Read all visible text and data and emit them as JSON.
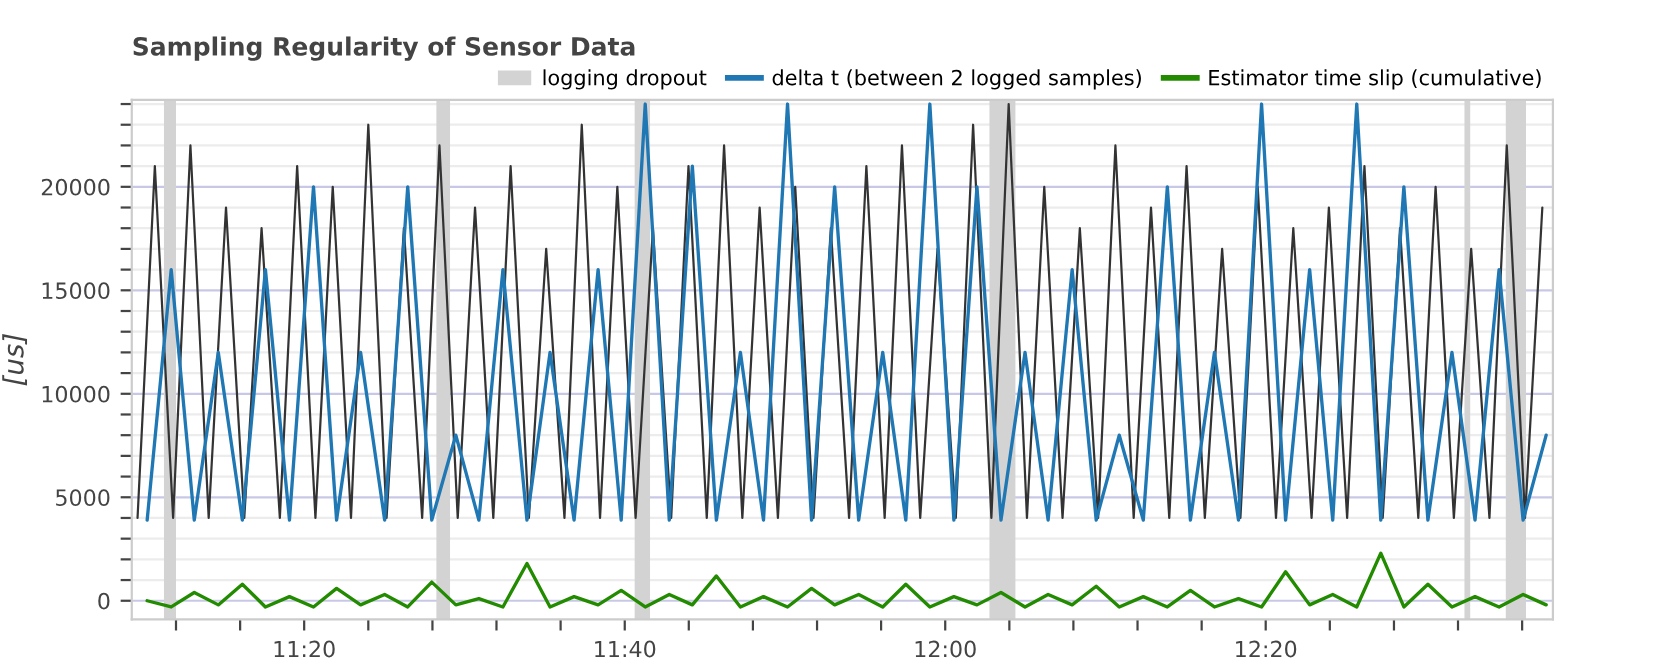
{
  "chart_data": {
    "type": "line",
    "title": "Sampling Regularity of Sensor Data",
    "ylabel": "[us]",
    "xlim": [
      11.154,
      12.632
    ],
    "ylim": [
      -900,
      24200
    ],
    "xticks": [
      {
        "value": 11.2,
        "label": null
      },
      {
        "value": 11.2667,
        "label": null
      },
      {
        "value": 11.3333,
        "label": "11:20"
      },
      {
        "value": 11.4,
        "label": null
      },
      {
        "value": 11.4667,
        "label": null
      },
      {
        "value": 11.5333,
        "label": null
      },
      {
        "value": 11.6,
        "label": null
      },
      {
        "value": 11.6667,
        "label": "11:40"
      },
      {
        "value": 11.7333,
        "label": null
      },
      {
        "value": 11.8,
        "label": null
      },
      {
        "value": 11.8667,
        "label": null
      },
      {
        "value": 11.9333,
        "label": null
      },
      {
        "value": 12,
        "label": "12:00"
      },
      {
        "value": 12.0667,
        "label": null
      },
      {
        "value": 12.1333,
        "label": null
      },
      {
        "value": 12.2,
        "label": null
      },
      {
        "value": 12.2667,
        "label": null
      },
      {
        "value": 12.3333,
        "label": "12:20"
      },
      {
        "value": 12.4,
        "label": null
      },
      {
        "value": 12.4667,
        "label": null
      },
      {
        "value": 12.5333,
        "label": null
      },
      {
        "value": 12.6,
        "label": null
      }
    ],
    "yticks": [
      0,
      {
        "value": 1000,
        "label": null
      },
      {
        "value": 2000,
        "label": null
      },
      {
        "value": 3000,
        "label": null
      },
      {
        "value": 4000,
        "label": null
      },
      5000,
      {
        "value": 6000,
        "label": null
      },
      {
        "value": 7000,
        "label": null
      },
      {
        "value": 8000,
        "label": null
      },
      {
        "value": 9000,
        "label": null
      },
      10000,
      {
        "value": 11000,
        "label": null
      },
      {
        "value": 12000,
        "label": null
      },
      {
        "value": 13000,
        "label": null
      },
      {
        "value": 14000,
        "label": null
      },
      15000,
      {
        "value": 16000,
        "label": null
      },
      {
        "value": 17000,
        "label": null
      },
      {
        "value": 18000,
        "label": null
      },
      {
        "value": 19000,
        "label": null
      },
      20000,
      {
        "value": 21000,
        "label": null
      },
      {
        "value": 22000,
        "label": null
      },
      {
        "value": 23000,
        "label": null
      },
      {
        "value": 24000,
        "label": null
      }
    ],
    "grid": "y",
    "legend": "top",
    "marker": "none",
    "line_style": "solid",
    "bands": [
      {
        "axis": "x",
        "from": 11.1875,
        "to": 11.2,
        "label": "logging dropout",
        "color": "#d3d3d3"
      },
      {
        "axis": "x",
        "from": 11.4708,
        "to": 11.485,
        "label": null,
        "color": "#d3d3d3"
      },
      {
        "axis": "x",
        "from": 11.677,
        "to": 11.693,
        "label": null,
        "color": "#d3d3d3"
      },
      {
        "axis": "x",
        "from": 12.046,
        "to": 12.073,
        "label": null,
        "color": "#d3d3d3"
      },
      {
        "axis": "x",
        "from": 12.54,
        "to": 12.546,
        "label": null,
        "color": "#d3d3d3"
      },
      {
        "axis": "x",
        "from": 12.583,
        "to": 12.604,
        "label": null,
        "color": "#d3d3d3"
      }
    ],
    "series": [
      {
        "color": "#333333",
        "x": [
          11.16,
          11.178,
          11.197,
          11.215,
          11.234,
          11.252,
          11.271,
          11.289,
          11.308,
          11.326,
          11.345,
          11.363,
          11.382,
          11.4,
          11.419,
          11.437,
          11.456,
          11.474,
          11.493,
          11.511,
          11.53,
          11.548,
          11.567,
          11.585,
          11.604,
          11.622,
          11.641,
          11.659,
          11.678,
          11.696,
          11.715,
          11.733,
          11.752,
          11.77,
          11.789,
          11.807,
          11.826,
          11.844,
          11.863,
          11.881,
          11.9,
          11.918,
          11.937,
          11.955,
          11.974,
          11.992,
          12.011,
          12.029,
          12.048,
          12.066,
          12.085,
          12.103,
          12.122,
          12.14,
          12.159,
          12.177,
          12.196,
          12.214,
          12.233,
          12.251,
          12.27,
          12.288,
          12.307,
          12.325,
          12.344,
          12.362,
          12.381,
          12.399,
          12.418,
          12.436,
          12.455,
          12.473,
          12.492,
          12.51,
          12.529,
          12.547,
          12.566,
          12.584,
          12.603,
          12.621
        ],
        "values": [
          4000,
          21000,
          4000,
          22000,
          4000,
          19000,
          4000,
          18000,
          4000,
          21000,
          4000,
          20000,
          4000,
          23000,
          4000,
          18000,
          4000,
          22000,
          4000,
          19000,
          4000,
          21000,
          4000,
          17000,
          4000,
          23000,
          4000,
          20000,
          4000,
          18000,
          4000,
          21000,
          4000,
          22000,
          4000,
          19000,
          4000,
          20000,
          4000,
          18000,
          4000,
          21000,
          4000,
          22000,
          4000,
          17000,
          4000,
          23000,
          4000,
          24000,
          4000,
          20000,
          4000,
          18000,
          4000,
          22000,
          4000,
          19000,
          4000,
          21000,
          4000,
          17000,
          4000,
          20000,
          4000,
          18000,
          4000,
          19000,
          4000,
          21000,
          4000,
          18000,
          4000,
          20000,
          4000,
          17000,
          4000,
          22000,
          4000,
          19000
        ]
      },
      {
        "name": "delta t (between 2 logged samples)",
        "color": "#1f77b4",
        "x": [
          11.17,
          11.195,
          11.219,
          11.244,
          11.269,
          11.293,
          11.318,
          11.343,
          11.367,
          11.392,
          11.417,
          11.441,
          11.466,
          11.491,
          11.515,
          11.54,
          11.565,
          11.589,
          11.614,
          11.639,
          11.663,
          11.688,
          11.713,
          11.737,
          11.762,
          11.787,
          11.811,
          11.836,
          11.861,
          11.885,
          11.91,
          11.935,
          11.959,
          11.984,
          12.009,
          12.033,
          12.058,
          12.083,
          12.107,
          12.132,
          12.157,
          12.181,
          12.206,
          12.231,
          12.255,
          12.28,
          12.305,
          12.329,
          12.354,
          12.379,
          12.403,
          12.428,
          12.453,
          12.477,
          12.502,
          12.527,
          12.551,
          12.576,
          12.601,
          12.625
        ],
        "values": [
          3900,
          16000,
          3900,
          12000,
          3900,
          16000,
          3900,
          20000,
          3900,
          12000,
          3900,
          20000,
          3900,
          8000,
          3900,
          16000,
          3900,
          12000,
          3900,
          16000,
          3900,
          24000,
          3900,
          21000,
          3900,
          12000,
          3900,
          24000,
          3900,
          20000,
          3900,
          12000,
          3900,
          24000,
          3900,
          20000,
          3900,
          12000,
          3900,
          16000,
          3900,
          8000,
          3900,
          20000,
          3900,
          12000,
          3900,
          24000,
          3900,
          16000,
          3900,
          24000,
          3900,
          20000,
          3900,
          12000,
          3900,
          16000,
          3900,
          8000
        ]
      },
      {
        "name": "Estimator time slip (cumulative)",
        "color": "#228b00",
        "x": [
          11.17,
          11.195,
          11.219,
          11.244,
          11.269,
          11.293,
          11.318,
          11.343,
          11.367,
          11.392,
          11.417,
          11.441,
          11.466,
          11.491,
          11.515,
          11.54,
          11.565,
          11.589,
          11.614,
          11.639,
          11.663,
          11.688,
          11.713,
          11.737,
          11.762,
          11.787,
          11.811,
          11.836,
          11.861,
          11.885,
          11.91,
          11.935,
          11.959,
          11.984,
          12.009,
          12.033,
          12.058,
          12.083,
          12.107,
          12.132,
          12.157,
          12.181,
          12.206,
          12.231,
          12.255,
          12.28,
          12.305,
          12.329,
          12.354,
          12.379,
          12.403,
          12.428,
          12.453,
          12.477,
          12.502,
          12.527,
          12.551,
          12.576,
          12.601,
          12.625
        ],
        "values": [
          0,
          -300,
          400,
          -200,
          800,
          -300,
          200,
          -300,
          600,
          -200,
          300,
          -300,
          900,
          -200,
          100,
          -300,
          1800,
          -300,
          200,
          -200,
          500,
          -300,
          300,
          -200,
          1200,
          -300,
          200,
          -300,
          600,
          -200,
          300,
          -300,
          800,
          -300,
          200,
          -200,
          400,
          -300,
          300,
          -200,
          700,
          -300,
          200,
          -300,
          500,
          -300,
          100,
          -300,
          1400,
          -200,
          300,
          -300,
          2300,
          -300,
          800,
          -300,
          200,
          -300,
          300,
          -200
        ]
      }
    ]
  }
}
